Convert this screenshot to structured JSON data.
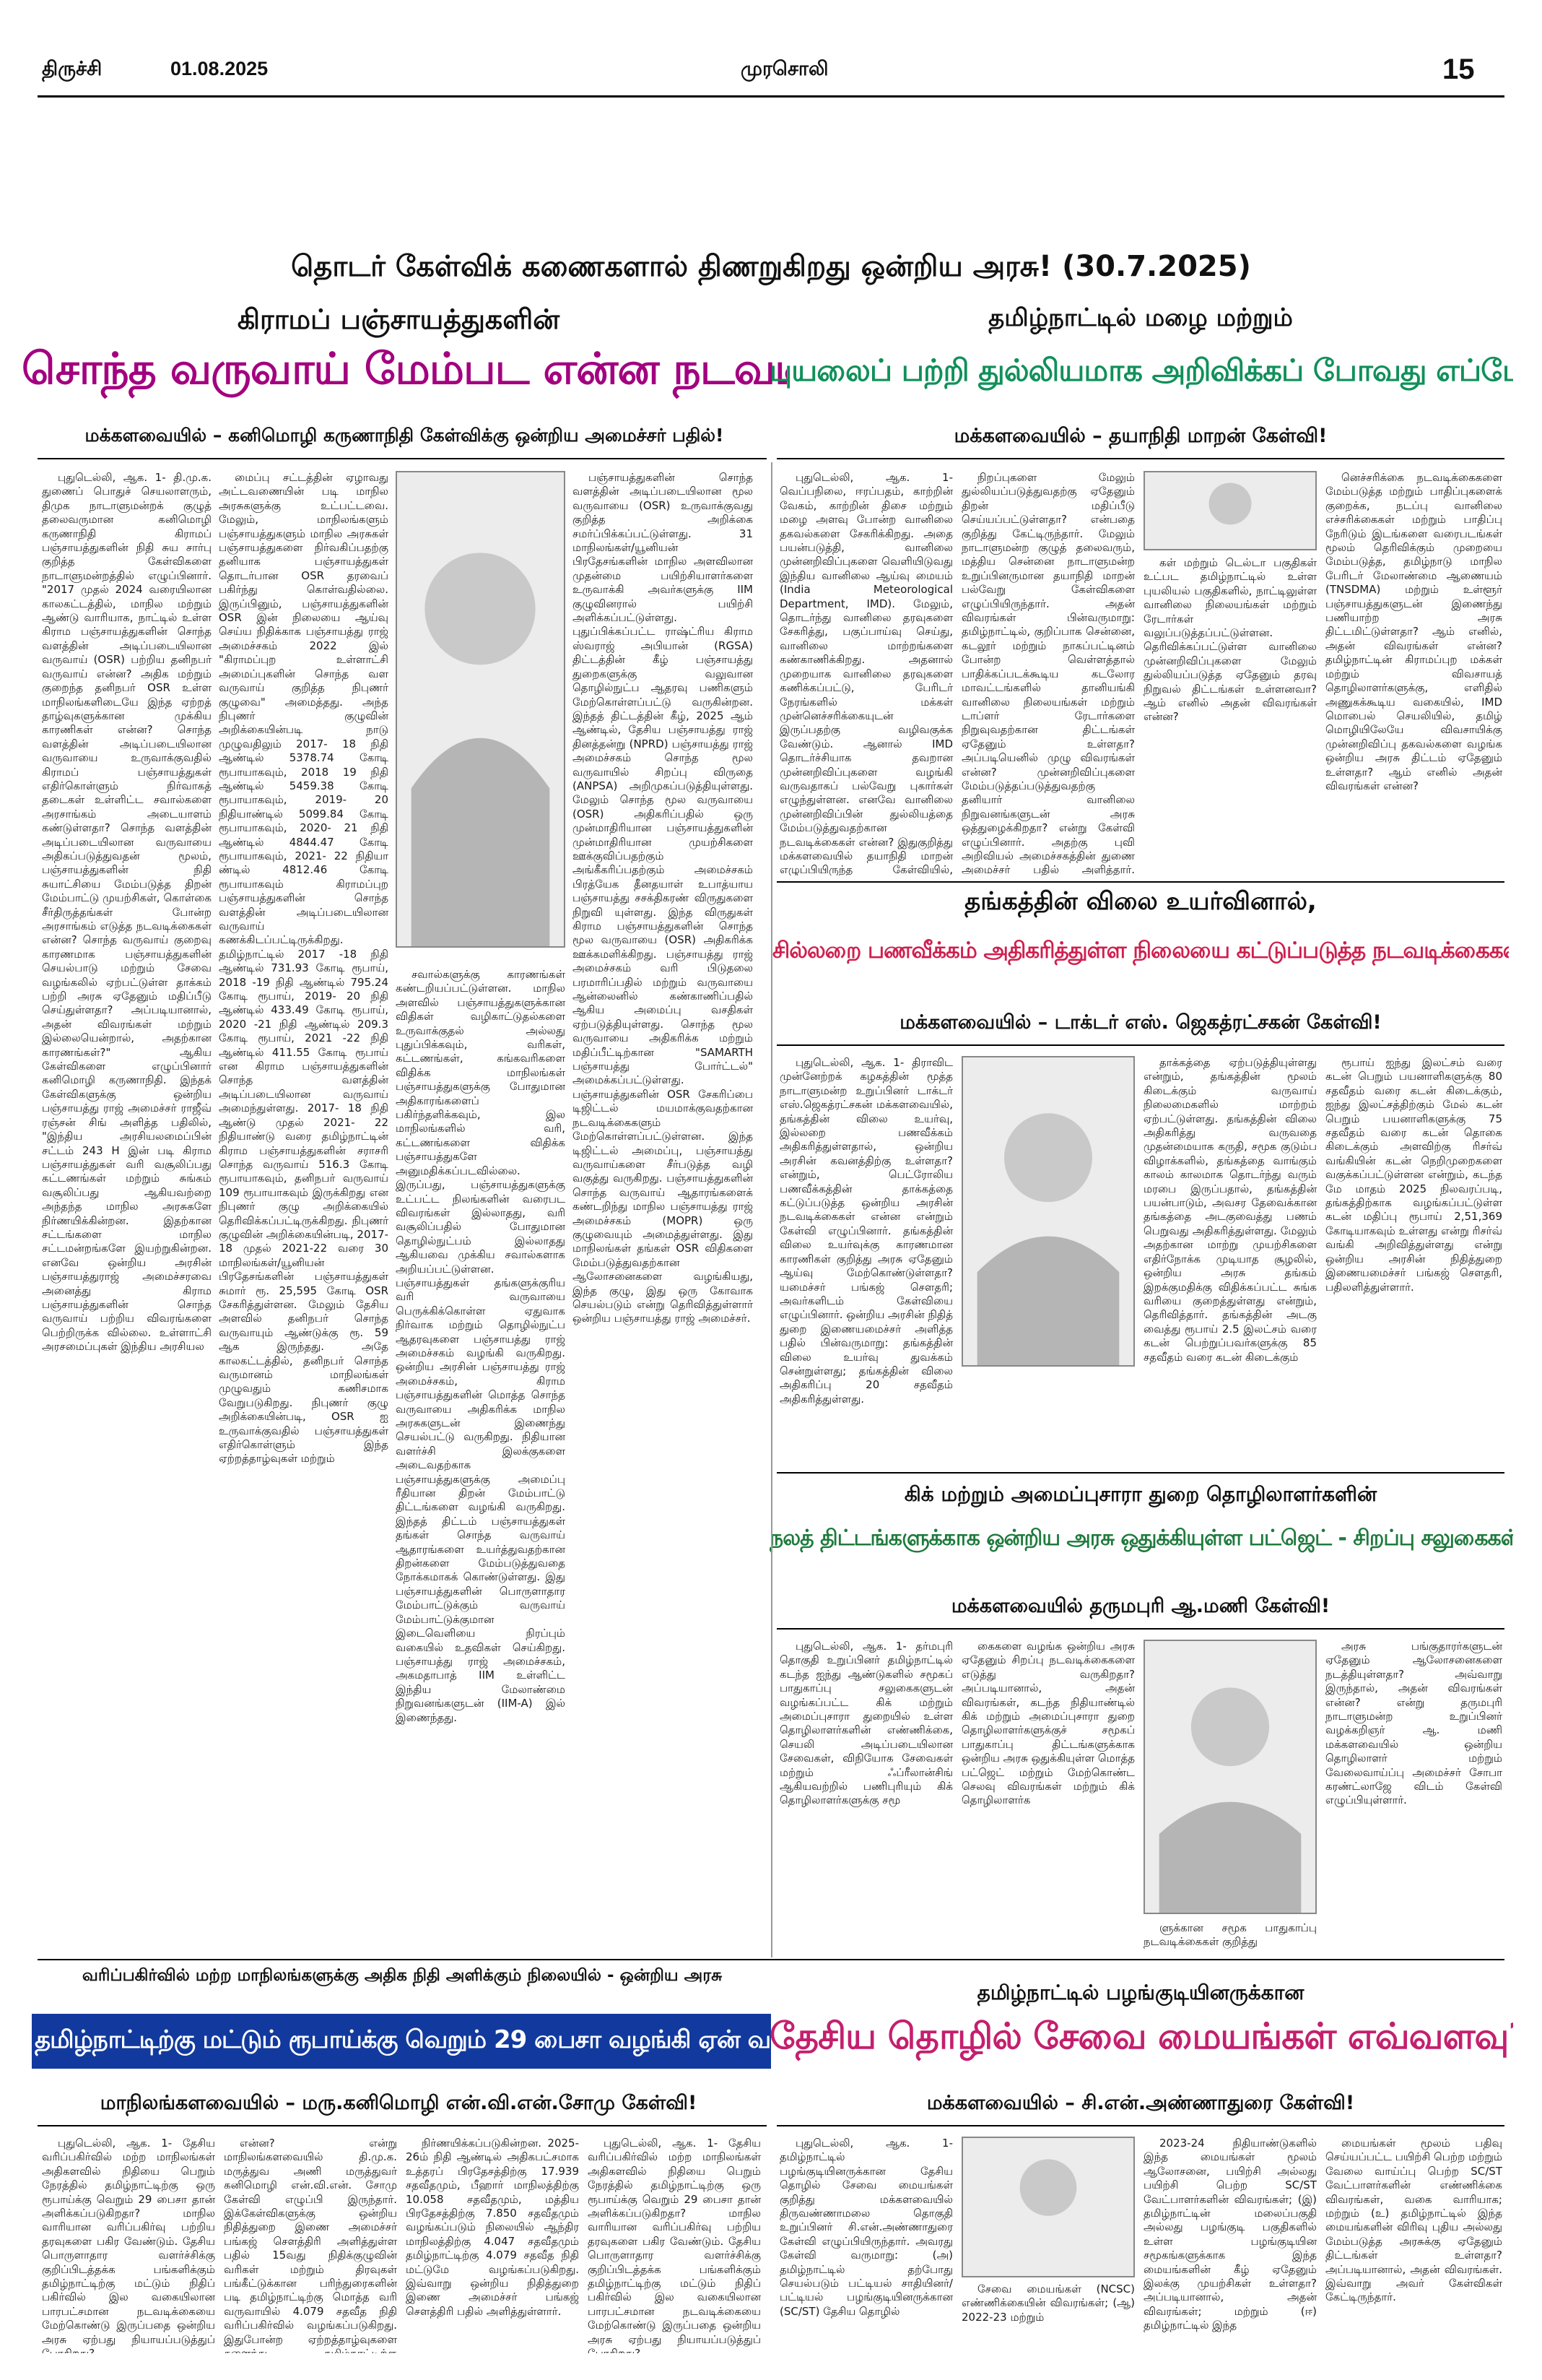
{
  "header": {
    "city": "திருச்சி",
    "date": "01.08.2025",
    "paper": "முரசொலி",
    "page": "15"
  },
  "banner": "தொடர் கேள்விக் கணைகளால் திணறுகிறது ஒன்றிய அரசு! (30.7.2025)",
  "stories": [
    {
      "kicker": "கிராமப் பஞ்சாயத்துகளின்",
      "headline": "சொந்த வருவாய் மேம்பட என்ன நடவடிக்கை?",
      "subhead": "மக்களவையில் – கனிமொழி கருணாநிதி கேள்விக்கு ஒன்றிய அமைச்சர் பதில்!",
      "columns": [
        "புதுடெல்லி, ஆக. 1- தி.மு.க. துணைப் பொதுச் செயலாளரும், திமுக நாடாளுமன்றக் குழுத் தலைவருமான கனிமொழி கருணாநிதி கிராமப் பஞ்சாயத்துகளின் நிதி சுய சார்பு குறித்த கேள்விகளை நாடாளுமன்றத்தில் எழுப்பினார். \"2017 முதல் 2024 வரையிலான காலகட்டத்தில், மாநில மற்றும் ஆண்டு வாரியாக, நாட்டில் உள்ள கிராம பஞ்சாயத்துகளின் சொந்த வளத்தின் அடிப்படையிலான வருவாய் (OSR) பற்றிய தனிநபர் வருவாய் என்ன? அதிக மற்றும் குறைந்த தனிநபர் OSR உள்ள மாநிலங்களிடையே இந்த ஏற்றத் தாழ்வுகளுக்கான முக்கிய காரணிகள் என்ன? சொந்த வளத்தின் அடிப்படையிலான வருவாயை உருவாக்குவதில் கிராமப் பஞ்சாயத்துகள் எதிர்கொள்ளும் நிர்வாகத் தடைகள் உள்ளிட்ட சவால்களை அரசாங்கம் அடையாளம் கண்டுள்ளதா? சொந்த வளத்தின் அடிப்படையிலான வருவாயை அதிகப்படுத்துவதன் மூலம், பஞ்சாயத்துகளின் நிதி சுயாட்சியை மேம்படுத்த திறன் மேம்பாட்டு முயற்சிகள், கொள்கை சீர்திருத்தங்கள் போன்ற அரசாங்கம் எடுத்த நடவடிக்கைகள் என்ன? சொந்த வருவாய் குறைவு காரணமாக பஞ்சாயத்துகளின் செயல்பாடு மற்றும் சேவை வழங்கலில் ஏற்பட்டுள்ள தாக்கம் பற்றி அரசு ஏதேனும் மதிப்பீடு செய்துள்ளதா? அப்படியானால், அதன் விவரங்கள் மற்றும் இல்லையென்றால், அதற்கான காரணங்கள்?\" ஆகிய கேள்விகளை எழுப்பினார் கனிமொழி கருணாநிதி. இந்தக் கேள்விகளுக்கு ஒன்றிய பஞ்சாயத்து ராஜ் அமைச்சர் ராஜீவ் ரஞ்சன் சிங் அளித்த பதிலில், \"இந்திய அரசியலமைப்பின் சட்டம் 243 H இன் படி கிராம பஞ்சாயத்துகள் வரி வசூலிப்பது கட்டணங்கள் மற்றும் சுங்கம் வசூலிப்பது ஆகியவற்றை அந்தந்த மாநில அரசுகளே நிர்ணயிக்கின்றன. இதற்கான சட்டங்களை மாநில சட்டமன்றங்களே இயற்றுகின்றன. எனவே ஒன்றிய அரசின் பஞ்சாயத்துராஜ் அமைச்சரவை அனைத்து கிராம பஞ்சாயத்துகளின் சொந்த வருவாய் பற்றிய விவரங்களை பெற்றிருக்க வில்லை. உள்ளாட்சி அரசமைப்புகள் இந்திய அரசியல",
        "மைப்பு சட்டத்தின் ஏழாவது அட்டவணையின் படி மாநில அரசுகளுக்கு உட்பட்டவை. மேலும், மாநிலங்களும் பஞ்சாயத்துகளும் மாநில அரசுகள் பஞ்சாயத்துகளை நிர்வகிப்பதற்கு தனியாக பஞ்சாயத்துகள் தொடர்பான OSR தரவைப் பகிர்ந்து கொள்வதில்லை. இருப்பினும், பஞ்சாயத்துகளின் OSR இன் நிலையை ஆய்வு செய்ய நிதிக்காக பஞ்சாயத்து ராஜ் அமைச்சகம் 2022 இல் \"கிராமப்புற உள்ளாட்சி அமைப்புகளின் சொந்த வள வருவாய் குறித்த நிபுணர் குழுவை\" அமைத்தது. அந்த நிபுணர் குழுவின் அறிக்கையின்படி நாடு முழுவதிலும் 2017- 18 நிதி ஆண்டில் 5378.74 கோடி ரூபாயாகவும், 2018 19 நிதி ஆண்டில் 5459.38 கோடி ரூபாயாகவும், 2019- 20 நிதியாண்டில் 5099.84 கோடி ரூபாயாகவும், 2020- 21 நிதி ஆண்டில் 4844.47 கோடி ரூபாயாகவும், 2021- 22 நிதியா ண்டில் 4812.46 கோடி ரூபாயாகவும் கிராமப்புற பஞ்சாயத்துகளின் சொந்த வளத்தின் அடிப்படையிலான வருவாய் கணக்கிடப்பட்டிருக்கிறது. தமிழ்நாட்டில் 2017 -18 நிதி ஆண்டில் 731.93 கோடி ரூபாய், 2018 -19 நிதி ஆண்டில் 795.24 கோடி ரூபாய், 2019- 20 நிதி ஆண்டில் 433.49 கோடி ரூபாய், 2020 -21 நிதி ஆண்டில் 209.3 கோடி ரூபாய், 2021 -22 நிதி ஆண்டில் 411.55 கோடி ரூபாய் என கிராம பஞ்சாயத்துகளின் சொந்த வளத்தின் அடிப்படையிலான வருவாய் அமைந்துள்ளது. 2017- 18 நிதி ஆண்டு முதல் 2021- 22 நிதியாண்டு வரை தமிழ்நாட்டின் கிராம பஞ்சாயத்துகளின் சராசரி சொந்த வருவாய் 516.3 கோடி ரூபாயாகவும், தனிநபர் வருவாய் 109 ரூபாயாகவும் இருக்கிறது என நிபுணர் குழு அறிக்கையில் தெரிவிக்கப்பட்டிருக்கிறது. நிபுணர் குழுவின் அறிக்கையின்படி, 2017-18 முதல் 2021-22 வரை 30 மாநிலங்கள்/யூனியன் பிரதேசங்களின் பஞ்சாயத்துகள் சுமார் ரூ. 25,595 கோடி OSR சேகரித்துள்ளன. மேலும் தேசிய அளவில் தனிநபர் சொந்த வருவாயும் ஆண்டுக்கு ரூ. 59 ஆக இருந்தது. அதே காலகட்டத்தில், தனிநபர் சொந்த வருமானம் மாநிலங்கள் முழுவதும் கணிசமாக வேறுபடுகிறது. நிபுணர் குழு அறிக்கையின்படி, OSR ஐ உருவாக்குவதில் பஞ்சாயத்துகள் எதிர்கொள்ளும் இந்த ஏற்றத்தாழ்வுகள் மற்றும்",
        "சவால்களுக்கு காரணங்கள் கண்டறியப்பட்டுள்ளன. மாநில அளவில் பஞ்சாயத்துகளுக்கான விதிகள் வழிகாட்டுதல்களை உருவாக்குதல் அல்லது புதுப்பிக்கவும், வரிகள், கட்டணங்கள், கங்கவரிகளை விதிக்க மாநிலங்கள் பஞ்சாயத்துகளுக்கு போதுமான அதிகாரங்களைப் பகிர்ந்தளிக்கவும், இல மாநிலங்களில் வரி, கட்டணங்களை விதிக்க பஞ்சாயத்துகளே அனுமதிக்கப்படவில்லை. இருப்பது, பஞ்சாயத்துகளுக்கு உட்பட்ட நிலங்களின் வரைபட விவரங்கள் இல்லாதது, வரி வசூலிப்பதில் போதுமான தொழில்நுட்பம் இல்லாதது ஆகியவை முக்கிய சவால்களாக அறியப்பட்டுள்ளன. பஞ்சாயத்துகள் தங்களுக்குரிய வரி வருவாயை பெருக்கிக்கொள்ள ஏதுவாக நிர்வாக மற்றும் தொழில்நுட்ப ஆதரவுகளை பஞ்சாயத்து ராஜ் அமைச்சகம் வழங்கி வருகிறது. ஒன்றிய அரசின் பஞ்சாயத்து ராஜ் அமைச்சகம், கிராம பஞ்சாயத்துகளின் மொத்த சொந்த வருவாயை அதிகரிக்க மாநில அரசுகளுடன் இணைந்து செயல்பட்டு வருகிறது. நிதியான வளர்ச்சி இலக்குகளை அடைவதற்காக பஞ்சாயத்துகளுக்கு அமைப்பு ரீதியான திறன் மேம்பாட்டு திட்டங்களை வழங்கி வருகிறது. இந்தத் திட்டம் பஞ்சாயத்துகள் தங்கள் சொந்த வருவாய் ஆதாரங்களை உயர்த்துவதற்கான திறன்களை மேம்படுத்துவதை நோக்கமாகக் கொண்டுள்ளது. இது பஞ்சாயத்துகளின் பொருளாதார மேம்பாட்டுக்கும் வருவாய் மேம்பாட்டுக்குமான இடைவெளியை நிரப்பும் வகையில் உதவிகள் செய்கிறது. பஞ்சாயத்து ராஜ் அமைச்சகம், அகமதாபாத் IIM உள்ளிட்ட இந்திய மேலாண்மை நிறுவனங்களுடன் (IIM-A) இல் இணைந்தது.",
        "பஞ்சாயத்துகளின் சொந்த வளத்தின் அடிப்படையிலான மூல வருவாயை (OSR) உருவாக்குவது குறித்த அறிக்கை சமர்ப்பிக்கப்பட்டுள்ளது. 31 மாநிலங்கள்/யூனியன் பிரதேசங்களின் மாநில அளவிலான முதன்மை பயிற்சியாளர்களை உருவாக்கி அவர்களுக்கு IIM குழுவினரால் பயிற்சி அளிக்கப்பட்டுள்ளது. புதுப்பிக்கப்பட்ட ராஷ்ட்ரிய கிராம ஸ்வராஜ் அபியான் (RGSA) திட்டத்தின் கீழ் பஞ்சாயத்து துறைகளுக்கு வலுவான தொழில்நுட்ப ஆதரவு பணிகளும் மேற்கொள்ளப்பட்டு வருகின்றன. இந்தத் திட்டத்தின் கீழ், 2025 ஆம் ஆண்டில், தேசிய பஞ்சாயத்து ராஜ் தினத்தன்று (NPRD) பஞ்சாயத்து ராஜ் அமைச்சகம் சொந்த மூல வருவாயில் சிறப்பு விருதை (ANPSA) அறிமுகப்படுத்தியுள்ளது. மேலும் சொந்த மூல வருவாயை (OSR) அதிகரிப்பதில் ஒரு முன்மாதிரியான பஞ்சாயத்துகளின் முன்மாதிரியான முயற்சிகளை ஊக்குவிப்பதற்கும் அங்கீகரிப்பதற்கும் அமைச்சகம் பிரத்யேக தீனதயாள் உபாத்யாய பஞ்சாயத்து சசக்திகரண் விருதுகளை நிறுவி யுள்ளது. இந்த விருதுகள் கிராம பஞ்சாயத்துகளின் சொந்த மூல வருவாயை (OSR) அதிகரிக்க ஊக்கமளிக்கிறது. பஞ்சாயத்து ராஜ் அமைச்சகம் வரி பிடுதலை பரமாரிப்பதில் மற்றும் வருவாயை ஆன்லைனில் கண்காணிப்பதில் ஆகிய அமைப்பு வசதிகள் ஏற்படுத்தியுள்ளது. சொந்த மூல வருவாயை அதிகரிக்க மற்றும் மதிப்பீட்டிற்கான \"SAMARTH பஞ்சாயத்து போர்ட்டல்\" அமைக்கப்பட்டுள்ளது. பஞ்சாயத்துகளின் OSR சேகரிப்பை டிஜிட்டல் மயமாக்குவதற்கான நடவடிக்கைகளும் மேற்கொள்ளப்பட்டுள்ளன. இந்த டிஜிட்டல் அமைப்பு, பஞ்சாயத்து வருவாய்களை சீர்படுத்த வழி வகுத்து வருகிறது. பஞ்சாயத்துகளின் சொந்த வருவாய் ஆதாரங்களைக் கண்டறிந்து மாநில பஞ்சாயத்து ராஜ் அமைச்சகம் (MOPR) ஒரு குழுவையும் அமைத்துள்ளது. இது மாநிலங்கள் தங்கள் OSR விதிகளை மேம்படுத்துவதற்கான ஆலோசனைகளை வழங்கியது, இந்த குழு, இது ஒரு கோவாக செயல்படும் என்று தெரிவித்துள்ளார் ஒன்றிய பஞ்சாயத்து ராஜ் அமைச்சர்."
      ]
    },
    {
      "kicker": "தமிழ்நாட்டில் மழை மற்றும்",
      "headline": "புயலைப் பற்றி துல்லியமாக அறிவிக்கப் போவது எப்போது?",
      "subhead": "மக்களவையில் – தயாநிதி மாறன் கேள்வி!",
      "columns": [
        "புதுடெல்லி, ஆக. 1- வெப்பநிலை, ஈரப்பதம், காற்றின் வேகம், காற்றின் திசை மற்றும் மழை அளவு போன்ற வானிலை தகவல்களை சேகரிக்கிறது. அதை பயன்படுத்தி, வானிலை முன்னறிவிப்புகளை வெளியிடுவது இந்திய வானிலை ஆய்வு மையம் (India Meteorological Department, IMD). மேலும், தொடர்ந்து வானிலை தரவுகளை சேகரித்து, பகுப்பாய்வு செய்து, வானிலை மாற்றங்களை கண்காணிக்கிறது. அதனால் முறையாக வானிலை தரவுகளை கணிக்கப்பட்டு, பேரிடர் நேரங்களில் மக்கள் முன்னெச்சரிக்கையுடன் இருப்பதற்கு வழிவகுக்க வேண்டும். ஆனால் IMD தொடர்ச்சியாக தவறான முன்னறிவிப்புகளை வழங்கி வருவதாகப் பல்வேறு புகார்கள் எழுந்துள்ளன. எனவே வானிலை முன்னறிவிப்பின் துல்லியத்தை மேம்படுத்துவதற்கான நடவடிக்கைகள் என்ன? இதுகுறித்து மக்களவையில் தயாநிதி மாறன் எழுப்பியிருந்த கேள்வியில், தமிழ்நாட்டில் தானியங்கி வானிலை நிலையங்கள் (AWS) மற்றும் டாப்ளர் ரேடார்களை நிறுவுவதற்கான நடவடிக்கைகள் என்ன? என்று கேட்டிருந்தார்.",
        "நிறப்புகளை மேலும் துல்லியப்படுத்துவதற்கு ஏதேனும் திறன் மதிப்பீடு செய்யப்பட்டுள்ளதா? என்பதை குறித்து கேட்டிருந்தார். மேலும் நாடாளுமன்ற குழுத் தலைவரும், மத்திய சென்னை நாடாளுமன்ற உறுப்பினருமான தயாநிதி மாறன் பல்வேறு கேள்விகளை எழுப்பியிருந்தார். அதன் விவரங்கள் பின்வருமாறு: தமிழ்நாட்டில், குறிப்பாக சென்னை, கடலூர் மற்றும் நாகப்பட்டினம் போன்ற வெள்ளத்தால் பாதிக்கப்படக்கூடிய கடலோர மாவட்டங்களில் தானியங்கி வானிலை நிலையங்கள் மற்றும் டாப்ளர் ரேடார்களை நிறுவுவதற்கான திட்டங்கள் ஏதேனும் உள்ளதா? அப்படியெனில் முழு விவரங்கள் என்ன? முன்னறிவிப்புகளை மேம்படுத்தப்படுத்துவதற்கு தனியார் வானிலை நிறுவனங்களுடன் அரசு ஒத்துழைக்கிறதா? என்று கேள்வி எழுப்பினார். அதற்கு புவி அறிவியல் அமைச்சகத்தின் துணை அமைச்சர் பதில் அளித்தார். மேற்குத் தொடர்ச்சி மலை",
        "கள் மற்றும் டெல்டா பகுதிகள் உட்பட தமிழ்நாட்டில் உள்ள புயலியல் பகுதிகளில், நாட்டிலுள்ள வானிலை நிலையங்கள் மற்றும் ரேடார்கள் வலுப்படுத்தப்பட்டுள்ளன. தெரிவிக்கப்பட்டுள்ள வானிலை முன்னறிவிப்புகளை மேலும் துல்லியப்படுத்த ஏதேனும் தரவு நிறுவல் திட்டங்கள் உள்ளனவா? ஆம் எனில் அதன் விவரங்கள் என்ன?",
        "னெச்சரிக்கை நடவடிக்கைகளை மேம்படுத்த மற்றும் பாதிப்புகளைக் குறைக்க, நடப்பு வானிலை எச்சரிக்கைகள் மற்றும் பாதிப்பு நேரிடும் இடங்களை வரைபடங்கள் மூலம் தெரிவிக்கும் முறையை மேம்படுத்த, தமிழ்நாடு மாநில பேரிடர் மேலாண்மை ஆணையம் (TNSDMA) மற்றும் உள்ளூர் பஞ்சாயத்துகளுடன் இணைந்து பணியாற்ற அரசு திட்டமிட்டுள்ளதா? ஆம் எனில், அதன் விவரங்கள் என்ன? தமிழ்நாட்டின் கிராமப்புற மக்கள் மற்றும் விவசாயத் தொழிலாளர்களுக்கு, எளிதில் அணுகக்கூடிய வகையில், IMD மொபைல் செயலியில், தமிழ் மொழியிலேயே விவசாயிக்கு முன்னறிவிப்பு தகவல்களை வழங்க ஒன்றிய அரசு திட்டம் ஏதேனும் உள்ளதா? ஆம் எனில் அதன் விவரங்கள் என்ன?"
      ]
    },
    {
      "kicker": "தங்கத்தின் விலை உயர்வினால்,",
      "headline": "சில்லறை பணவீக்கம் அதிகரித்துள்ள நிலையை கட்டுப்படுத்த நடவடிக்கைகள் என்னென்ன?",
      "subhead": "மக்களவையில் – டாக்டர் எஸ். ஜெகத்ரட்சகன் கேள்வி!",
      "columns": [
        "புதுடெல்லி, ஆக. 1- திராவிட முன்னேற்றக் கழகத்தின் மூத்த நாடாளுமன்ற உறுப்பினர் டாக்டர் எஸ்.ஜெகத்ரட்சகன் மக்களவையில், தங்கத்தின் விலை உயர்வு, இல்லறை பணவீக்கம் அதிகரித்துள்ளதால், ஒன்றிய அரசின் கவனத்திற்கு உள்ளதா? என்றும், பெட்ரோலிய பணவீக்கத்தின் தாக்கத்தை கட்டுப்படுத்த ஒன்றிய அரசின் நடவடிக்கைகள் என்ன என்றும் கேள்வி எழுப்பினார். தங்கத்தின் விலை உயர்வுக்கு காரணமான காரணிகள் குறித்து அரசு ஏதேனும் ஆய்வு மேற்கொண்டுள்ளதா? யமைச்சர் பங்கஜ் சௌதரி; அவர்களிடம் கேள்வியை எழுப்பினார். ஒன்றிய அரசின் நிதித் துறை இணையமைச்சர் அளித்த பதில் பின்வருமாறு: தங்கத்தின் விலை உயர்வு துவக்கம் சென்றுள்ளது; தங்கத்தின் விலை அதிகரிப்பு 20 சதவீதம் அதிகரித்துள்ளது.",
        "தாக்கத்தை ஏற்படுத்தியுள்ளது என்றும், தங்கத்தின் மூலம் கிடைக்கும் வருவாய் நிலைமைகளில் மாற்றம் ஏற்பட்டுள்ளது. தங்கத்தின் விலை அதிகரித்து வருவதை முதன்மையாக கருதி, சமூக குடும்ப விழாக்களில், தங்கத்தை வாங்கும் காலம் காலமாக தொடர்ந்து வரும் மரபை இருப்பதால், தங்கத்தின் பயன்பாடும், அவசர தேவைக்கான தங்கத்தை அடகுவைத்து பணம் பெறுவது அதிகரித்துள்ளது. மேலும் அதற்கான மாற்று முயற்சிகளை எதிர்நோக்க முடியாத சூழலில், ஒன்றிய அரசு தங்கம் இறக்குமதிக்கு விதிக்கப்பட்ட சுங்க வரியை குறைத்துள்ளது என்றும், தெரிவித்தார். தங்கத்தின் அடகு வைத்து ரூபாய் 2.5 இலட்சம் வரை கடன் பெற்றுப்பவர்களுக்கு 85 சதவீதம் வரை கடன் கிடைக்கும்",
        "ரூபாய் ஐந்து இலட்சம் வரை கடன் பெறும் பயனாளிகளுக்கு 80 சதவீதம் வரை கடன் கிடைக்கும், ஐந்து இலட்சத்திற்கும் மேல் கடன் பெறும் பயனாளிகளுக்கு 75 சதவீதம் வரை கடன் தொகை கிடைக்கும் அளவிற்கு ரிசர்வ் வங்கியின் கடன் நெறிமுறைகளை வகுக்கப்பட்டுள்ளன என்றும், கடந்த மே மாதம் 2025 நிலவரப்படி, தங்கத்திற்காக வழங்கப்பட்டுள்ள கடன் மதிப்பு ரூபாய் 2,51,369 கோடியாகவும் உள்ளது என்று ரிசர்வ் வங்கி அறிவித்துள்ளது என்று ஒன்றிய அரசின் நிதித்துறை இணையமைச்சர் பங்கஜ் சௌதரி, பதிலளித்துள்ளார்."
      ]
    },
    {
      "kicker": "கிக் மற்றும் அமைப்புசாரா துறை தொழிலாளர்களின்",
      "headline": "நலத் திட்டங்களுக்காக ஒன்றிய அரசு ஒதுக்கியுள்ள பட்ஜெட் - சிறப்பு சலுகைகள் என்ன?",
      "subhead": "மக்களவையில் தருமபுரி ஆ.மணி கேள்வி!",
      "columns": [
        "புதுடெல்லி, ஆக. 1- தர்மபுரி தொகுதி உறுப்பினர் தமிழ்நாட்டில் கடந்த ஐந்து ஆண்டுகளில் சமூகப் பாதுகாப்பு சலுகைகளுடன் வழங்கப்பட்ட கிக் மற்றும் அமைப்புசாரா துறையில் உள்ள தொழிலாளர்களின் எண்ணிக்கை, செயலி அடிப்படையிலான சேவைகள், விநியோக சேவைகள் மற்றும் ஃப்ரீலான்சிங் ஆகியவற்றில் பணிபுரியும் கிக் தொழிலாளர்களுக்கு சமூ",
        "கைகளை வழங்க ஒன்றிய அரசு ஏதேனும் சிறப்பு நடவடிக்கைகளை எடுத்து வருகிறதா? அப்படியானால், அதன் விவரங்கள், கடந்த நிதியாண்டில் கிக் மற்றும் அமைப்புசாரா துறை தொழிலாளர்களுக்குச் சமூகப் பாதுகாப்பு திட்டங்களுக்காக ஒன்றிய அரசு ஒதுக்கியுள்ள மொத்த பட்ஜெட் மற்றும் மேற்கொண்ட செலவு விவரங்கள் மற்றும் கிக் தொழிலாளர்க",
        "ளுக்கான சமூக பாதுகாப்பு நடவடிக்கைகள் குறித்து",
        "அரசு பங்குதாரர்களுடன் ஏதேனும் ஆலோசனைகளை நடத்தியுள்ளதா? அவ்வாறு இருந்தால், அதன் விவரங்கள் என்ன? என்று தருமபுரி நாடாளுமன்ற உறுப்பினர் வழக்கறிஞர் ஆ. மணி மக்களவையில் ஒன்றிய தொழிலாளர் மற்றும் வேலைவாய்ப்பு அமைச்சர் சோபா கரண்ட்லாஜே விடம் கேள்வி எழுப்பியுள்ளார்."
      ]
    },
    {
      "kicker": "வரிப்பகிர்வில் மற்ற மாநிலங்களுக்கு அதிக நிதி அளிக்கும் நிலையில் - ஒன்றிய அரசு",
      "headline": "தமிழ்நாட்டிற்கு மட்டும் ரூபாய்க்கு வெறும் 29 பைசா வழங்கி ஏன் வஞ்சிக்கிறது?",
      "subhead": "மாநிலங்களவையில் – மரு.கனிமொழி என்.வி.என்.சோமு கேள்வி!",
      "columns": [
        "புதுடெல்லி, ஆக. 1- தேசிய வரிப்பகிர்வில் மற்ற மாநிலங்கள் அதிகளவில் நிதியை பெறும் நேரத்தில் தமிழ்நாட்டிற்கு ஒரு ரூபாய்க்கு வெறும் 29 பைசா தான் அளிக்கப்படுகிறதா? மாநில வாரியான வரிப்பகிர்வு பற்றிய தரவுகளை பகிர வேண்டும். தேசிய பொருளாதார வளர்ச்சிக்கு குறிப்பிடத்தக்க பங்களிக்கும் தமிழ்நாட்டிற்கு மட்டும் நிதிப் பகிர்வில் இல வகையிலான பாரபட்சமான நடவடிக்கையை மேற்கொண்டு இருப்பதை ஒன்றிய அரசு ஏற்பது நியாயப்படுத்துப் போகிறது?",
        "என்ன? என்று மாநிலங்களவையில் தி.மு.க. மருத்துவ அணி மருத்துவர் கனிமொழி என்.வி.என். சோமு கேள்வி எழுப்பி இருந்தார். இக்கேள்விகளுக்கு ஒன்றிய நிதித்துறை இணை அமைச்சர் பங்கஜ் சௌத்திரி அளித்துள்ள பதில் 15வது நிதிக்குழுவின் வரிகள் மற்றும் திரவுகள் பங்கீட்டுக்கான பரிந்துரைகளின் படி தமிழ்நாட்டிற்கு மொத்த வரி வருவாயில் 4.079 சதவீத நிதி வரிப்பகிர்வில் வழங்கப்படுகிறது. இதுபோன்ற ஏற்றத்தாழ்வுகளை களைந்து தமிழ்நாட்டிற்கு நியாயமான வரிப்பகிர்வை உறுதி செய்ய ஒன்றிய அரசு மேற்கொள்ள உள்ள நடவடிக்கைகள்",
        "நிர்ணயிக்கப்படுகின்றன. 2025-26ம் நிதி ஆண்டில் அதிகபட்சமாக உத்தரப் பிரதேசத்திற்கு 17.939 சதவீதமும், பீஹார் மாநிலத்திற்கு 10.058 சதவீதமும், மத்திய பிரதேசத்திற்கு 7.850 சதவீதமும் வழங்கப்படும் நிலையில் ஆந்திர மாநிலத்திற்கு 4.047 சதவீதமும் தமிழ்நாட்டிற்கு 4.079 சதவீத நிதி மட்டுமே வழங்கப்படுகிறது. இவ்வாறு ஒன்றிய நிதித்துறை இணை அமைச்சர் பங்கஜ் சௌத்திரி பதில் அளித்துள்ளார்."
      ]
    },
    {
      "kicker": "தமிழ்நாட்டில் பழங்குடியினருக்கான",
      "headline": "தேசிய தொழில் சேவை மையங்கள் எவ்வளவு?",
      "subhead": "மக்களவையில் – சி.என்.அண்ணாதுரை கேள்வி!",
      "columns": [
        "புதுடெல்லி, ஆக. 1- தமிழ்நாட்டில் பழங்குடியினருக்கான தேசிய தொழில் சேவை மையங்கள் குறித்து மக்களவையில் திருவண்ணாமலை தொகுதி உறுப்பினர் சி.என்.அண்ணாதுரை கேள்வி எழுப்பியிருந்தார். அவரது கேள்வி வருமாறு: (அ) தமிழ்நாட்டில் தற்போது செயல்படும் பட்டியல் சாதியினர்/பட்டியல் பழங்குடியினருக்கான (SC/ST) தேசிய தொழில்",
        "சேவை மையங்கள் (NCSC) எண்ணிக்கையின் விவரங்கள்; (ஆ) 2022-23 மற்றும்",
        "2023-24 நிதியாண்டுகளில் இந்த மையங்கள் மூலம் ஆலோசனை, பயிற்சி அல்லது பயிற்சி பெற்ற SC/ST வேட்பாளர்களின் விவரங்கள்; (இ) தமிழ்நாட்டின் மலைப்பகுதி அல்லது பழங்குடி பகுதிகளில் உள்ள பழங்குடியின சமூகங்களுக்காக இந்த மையங்களின் கீழ் ஏதேனும் இலக்கு முயற்சிகள் உள்ளதா? அப்படியானால், அதன் விவரங்கள்; மற்றும் (ஈ) தமிழ்நாட்டில் இந்த",
        "மையங்கள் மூலம் பதிவு செய்யப்பட்ட பயிற்சி பெற்ற மற்றும் வேலை வாய்ப்பு பெற்ற SC/ST வேட்பாளர்களின் எண்ணிக்கை விவரங்கள், வகை வாரியாக; மற்றும் (உ) தமிழ்நாட்டில் இந்த மையங்களின் விரிவு புதிய அல்லது மேம்படுத்த அரசுக்கு ஏதேனும் திட்டங்கள் உள்ளதா? அப்படியானால், அதன் விவரங்கள். இவ்வாறு அவர் கேள்விகள் கேட்டிருந்தார்."
      ]
    }
  ]
}
